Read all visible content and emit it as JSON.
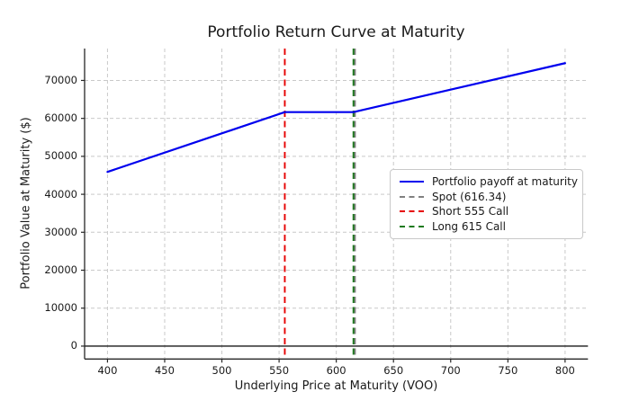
{
  "chart_data": {
    "type": "line",
    "title": "Portfolio Return Curve at Maturity",
    "xlabel": "Underlying Price at Maturity (VOO)",
    "ylabel": "Portfolio Value at Maturity ($)",
    "xlim": [
      380,
      820
    ],
    "ylim": [
      -3400,
      78400
    ],
    "xticks": [
      400,
      450,
      500,
      550,
      600,
      650,
      700,
      750,
      800
    ],
    "yticks": [
      0,
      10000,
      20000,
      30000,
      40000,
      50000,
      60000,
      70000
    ],
    "grid": true,
    "zero_line": true,
    "legend_position": "center right",
    "series": [
      {
        "name": "Portfolio payoff at maturity",
        "color": "#0000ee",
        "style": "solid",
        "points": [
          [
            400,
            45900
          ],
          [
            555,
            61650
          ],
          [
            615,
            61650
          ],
          [
            800,
            74550
          ]
        ]
      }
    ],
    "vlines": [
      {
        "x": 616.34,
        "label": "Spot (616.34)",
        "color": "#808080",
        "style": "dashed"
      },
      {
        "x": 555,
        "label": "Short 555 Call",
        "color": "#e60000",
        "style": "dashed"
      },
      {
        "x": 615,
        "label": "Long 615 Call",
        "color": "#1f7a1f",
        "style": "dashed"
      }
    ],
    "legend": [
      {
        "label": "Portfolio payoff at maturity",
        "color": "#0000ee",
        "style": "solid"
      },
      {
        "label": "Spot (616.34)",
        "color": "#808080",
        "style": "dashed"
      },
      {
        "label": "Short 555 Call",
        "color": "#e60000",
        "style": "dashed"
      },
      {
        "label": "Long 615 Call",
        "color": "#1f7a1f",
        "style": "dashed"
      }
    ],
    "colors": {
      "grid": "#c9c9c9",
      "spine": "#262626",
      "zero_line": "#1a1a1a",
      "background": "#ffffff"
    }
  }
}
